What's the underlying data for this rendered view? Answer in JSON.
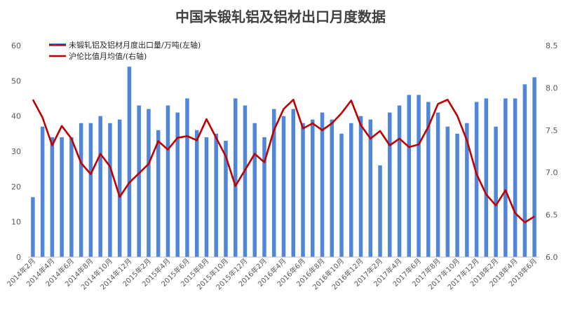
{
  "chart_data": {
    "type": "bar+line",
    "title": "中国未锻轧铝及铝材出口月度数据",
    "categories": [
      "2014年2月",
      "2014年3月",
      "2014年4月",
      "2014年5月",
      "2014年6月",
      "2014年7月",
      "2014年8月",
      "2014年9月",
      "2014年10月",
      "2014年11月",
      "2014年12月",
      "2015年1月",
      "2015年2月",
      "2015年3月",
      "2015年4月",
      "2015年5月",
      "2015年6月",
      "2015年7月",
      "2015年8月",
      "2015年9月",
      "2015年10月",
      "2015年11月",
      "2015年12月",
      "2016年1月",
      "2016年2月",
      "2016年3月",
      "2016年4月",
      "2016年5月",
      "2016年6月",
      "2016年7月",
      "2016年8月",
      "2016年9月",
      "2016年10月",
      "2016年11月",
      "2016年12月",
      "2017年1月",
      "2017年2月",
      "2017年3月",
      "2017年4月",
      "2017年5月",
      "2017年6月",
      "2017年7月",
      "2017年8月",
      "2017年9月",
      "2017年10月",
      "2017年11月",
      "2017年12月",
      "2018年1月",
      "2018年2月",
      "2018年3月",
      "2018年4月",
      "2018年5月",
      "2018年6月"
    ],
    "x_tick_labels": [
      "2014年2月",
      "2014年4月",
      "2014年6月",
      "2014年8月",
      "2014年10月",
      "2014年12月",
      "2015年2月",
      "2015年4月",
      "2015年6月",
      "2015年8月",
      "2015年10月",
      "2015年12月",
      "2016年2月",
      "2016年4月",
      "2016年6月",
      "2016年8月",
      "2016年10月",
      "2016年12月",
      "2017年2月",
      "2017年4月",
      "2017年6月",
      "2017年8月",
      "2017年10月",
      "2017年12月",
      "2018年2月",
      "2018年4月",
      "2018年6月"
    ],
    "series": [
      {
        "name": "未锻轧铝及铝材月度出口量/万吨(左轴)",
        "type": "bar",
        "axis": "left",
        "color": "#4f86d8",
        "values": [
          17,
          37,
          34,
          34,
          34,
          38,
          38,
          40,
          38,
          39,
          54,
          43,
          42,
          36,
          43,
          41,
          45,
          36,
          34,
          35,
          33,
          45,
          43,
          38,
          34,
          42,
          40,
          42,
          38,
          39,
          41,
          39,
          35,
          38,
          40,
          39,
          26,
          41,
          43,
          46,
          46,
          44,
          41,
          37,
          35,
          38,
          44,
          45,
          37,
          45,
          45,
          49,
          51
        ]
      },
      {
        "name": "沪伦比值月均值/(右轴)",
        "type": "line",
        "axis": "right",
        "color": "#c00000",
        "values": [
          7.86,
          7.65,
          7.32,
          7.55,
          7.4,
          7.11,
          6.98,
          7.22,
          7.07,
          6.71,
          6.88,
          6.99,
          7.1,
          7.37,
          7.27,
          7.41,
          7.43,
          7.38,
          7.63,
          7.41,
          7.19,
          6.84,
          7.03,
          7.22,
          7.12,
          7.5,
          7.75,
          7.86,
          7.52,
          7.58,
          7.5,
          7.58,
          7.7,
          7.85,
          7.56,
          7.4,
          7.49,
          7.32,
          7.4,
          7.3,
          7.33,
          7.54,
          7.81,
          7.86,
          7.67,
          7.38,
          6.98,
          6.74,
          6.61,
          6.79,
          6.52,
          6.41,
          6.48
        ]
      }
    ],
    "y_left": {
      "min": 0,
      "max": 60,
      "ticks": [
        0,
        10,
        20,
        30,
        40,
        50,
        60
      ]
    },
    "y_right": {
      "min": 6.0,
      "max": 8.5,
      "ticks": [
        "6.0",
        "6.5",
        "7.0",
        "7.5",
        "8.0",
        "8.5"
      ]
    },
    "grid": false,
    "legend": "top-left"
  }
}
